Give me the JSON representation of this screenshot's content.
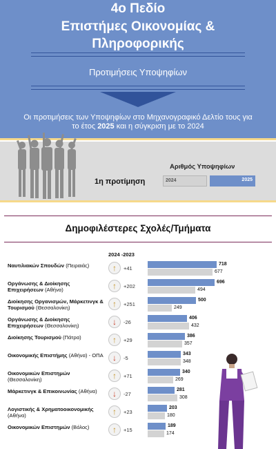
{
  "header": {
    "title_line1": "4ο Πεδίο",
    "title_line2": "Επιστήμες Οικονομίας &",
    "title_line3": "Πληροφορικής",
    "subtitle": "Προτιμήσεις Υποψηφίων",
    "desc_line1": "Οι προτιμήσεις των Υποψηφίων στο Μηχανογραφικό Δελτίο τους για",
    "desc_prefix": "το έτος ",
    "desc_year": "2025",
    "desc_middle": " και η σύγκριση με το ",
    "desc_compare": "2024"
  },
  "candidates": {
    "title": "Αριθμός Υποψηφίων",
    "first_pref_label": "1η προτίμηση",
    "label_2024": "2024",
    "label_2025": "2025"
  },
  "section": {
    "title": "Δημοφιλέστερες Σχολές/Τμήματα",
    "diff_header": "2024 -2023"
  },
  "colors": {
    "bar_2025": "#6e8fc9",
    "bar_2024": "#d3d3d3",
    "arrow_up": "#c3932a",
    "arrow_down": "#c53b24"
  },
  "chart_data": {
    "type": "bar",
    "orientation": "horizontal",
    "categories": [
      {
        "main": "Ναυτιλιακών Σπουδών",
        "sub": " (Πειραιάς)",
        "direction": "up",
        "diff": "+41"
      },
      {
        "main": "Οργάνωσης & Διοίκησης Επιχειρήσεων",
        "sub": " (Αθήνα)",
        "direction": "up",
        "diff": "+202"
      },
      {
        "main": "Διοίκησης Οργανισμών, Μάρκετινγκ & Τουρισμού",
        "sub": " (Θεσσαλονίκη)",
        "direction": "up",
        "diff": "+251"
      },
      {
        "main": "Οργάνωσης & Διοίκησης Επιχειρήσεων",
        "sub": " (Θεσσαλονίκη)",
        "direction": "down",
        "diff": "-26"
      },
      {
        "main": "Διοίκησης Τουρισμού",
        "sub": " (Πάτρα)",
        "direction": "up",
        "diff": "+29"
      },
      {
        "main": "Οικονομικής Επιστήμης",
        "sub": " (Αθήνα) - ΟΠΑ",
        "direction": "down",
        "diff": "-5"
      },
      {
        "main": "Οικονομικών Επιστημών",
        "sub": " (Θεσσαλονίκη)",
        "direction": "up",
        "diff": "+71"
      },
      {
        "main": "Μάρκετινγκ & Επικοινωνίας",
        "sub": " (Αθήνα)",
        "direction": "down",
        "diff": "-27"
      },
      {
        "main": "Λογιστικής & Χρηματοοικονομικής",
        "sub": " (Αθήνα)",
        "direction": "up",
        "diff": "+23"
      },
      {
        "main": "Οικονομικών Επιστημών",
        "sub": " (Βόλος)",
        "direction": "up",
        "diff": "+15"
      }
    ],
    "series": [
      {
        "name": "2025",
        "values": [
          718,
          696,
          500,
          406,
          386,
          343,
          340,
          281,
          203,
          189
        ]
      },
      {
        "name": "2024",
        "values": [
          677,
          494,
          249,
          432,
          357,
          348,
          269,
          308,
          180,
          174
        ]
      }
    ],
    "xlim": [
      0,
      718
    ]
  }
}
